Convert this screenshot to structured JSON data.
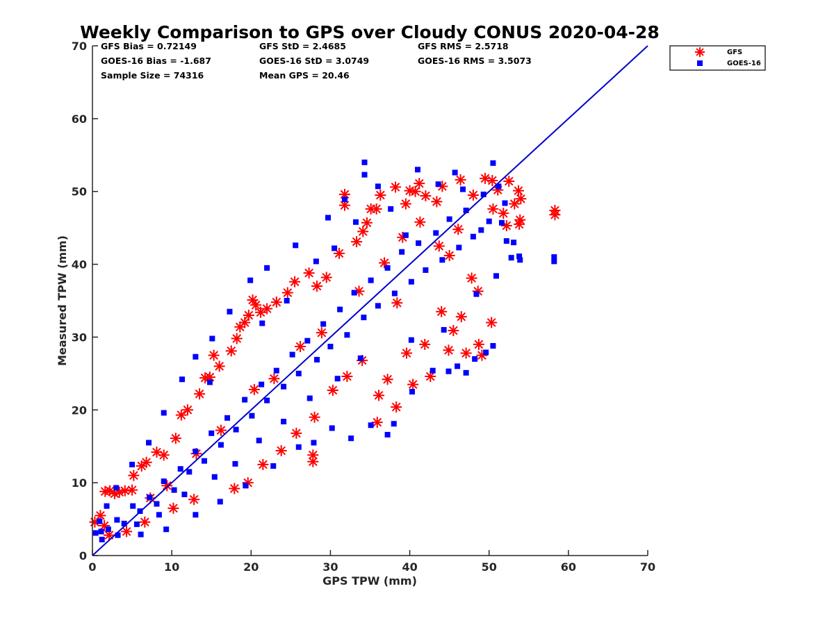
{
  "chart_data": {
    "type": "scatter",
    "title": "Weekly Comparison to GPS over Cloudy CONUS 2020-04-28",
    "xlabel": "GPS TPW (mm)",
    "ylabel": "Measured TPW (mm)",
    "xlim": [
      0,
      70
    ],
    "ylim": [
      0,
      70
    ],
    "xticks": [
      "0",
      "10",
      "20",
      "30",
      "40",
      "50",
      "60",
      "70"
    ],
    "yticks": [
      "0",
      "10",
      "20",
      "30",
      "40",
      "50",
      "60",
      "70"
    ],
    "grid": false,
    "legend_position": "outside-top-right",
    "reference_line": {
      "from": [
        0,
        0
      ],
      "to": [
        70,
        70
      ],
      "color": "#0000cc"
    },
    "stats": [
      [
        "GFS Bias = 0.72149",
        "GFS StD = 2.4685",
        "GFS RMS = 2.5718"
      ],
      [
        "GOES-16 Bias = -1.687",
        "GOES-16 StD = 3.0749",
        "GOES-16 RMS = 3.5073"
      ],
      [
        "Sample Size = 74316",
        "Mean GPS = 20.46",
        ""
      ]
    ],
    "series": [
      {
        "name": "GFS",
        "marker": "asterisk",
        "color": "#ff0000",
        "points": [
          [
            0.3,
            4.6
          ],
          [
            1.0,
            5.5
          ],
          [
            1.6,
            8.8
          ],
          [
            2.2,
            8.9
          ],
          [
            2.8,
            8.5
          ],
          [
            3.4,
            8.7
          ],
          [
            4.1,
            8.9
          ],
          [
            5.0,
            9.0
          ],
          [
            5.2,
            11.0
          ],
          [
            6.2,
            12.3
          ],
          [
            6.8,
            12.8
          ],
          [
            8.1,
            14.2
          ],
          [
            9.0,
            13.8
          ],
          [
            10.5,
            16.1
          ],
          [
            11.2,
            19.3
          ],
          [
            12.0,
            20.0
          ],
          [
            13.5,
            22.2
          ],
          [
            14.2,
            24.4
          ],
          [
            14.8,
            24.5
          ],
          [
            15.3,
            27.5
          ],
          [
            16.0,
            26.0
          ],
          [
            17.5,
            28.1
          ],
          [
            18.2,
            29.8
          ],
          [
            18.6,
            31.4
          ],
          [
            19.2,
            32.0
          ],
          [
            19.7,
            33.0
          ],
          [
            20.2,
            35.1
          ],
          [
            20.6,
            34.4
          ],
          [
            21.2,
            33.4
          ],
          [
            22.0,
            33.9
          ],
          [
            23.2,
            34.8
          ],
          [
            24.6,
            36.1
          ],
          [
            25.5,
            37.6
          ],
          [
            27.3,
            38.8
          ],
          [
            28.3,
            37.0
          ],
          [
            29.5,
            38.2
          ],
          [
            31.1,
            41.5
          ],
          [
            31.8,
            49.6
          ],
          [
            31.8,
            48.1
          ],
          [
            33.3,
            43.1
          ],
          [
            34.1,
            44.5
          ],
          [
            34.6,
            45.7
          ],
          [
            35.1,
            47.6
          ],
          [
            35.8,
            47.6
          ],
          [
            36.3,
            49.5
          ],
          [
            38.2,
            50.6
          ],
          [
            39.5,
            48.3
          ],
          [
            40.0,
            50.1
          ],
          [
            40.7,
            50.0
          ],
          [
            41.2,
            51.1
          ],
          [
            42.0,
            49.4
          ],
          [
            43.4,
            48.6
          ],
          [
            44.1,
            50.7
          ],
          [
            46.4,
            51.6
          ],
          [
            48.0,
            49.5
          ],
          [
            49.5,
            51.8
          ],
          [
            50.4,
            51.5
          ],
          [
            51.1,
            50.2
          ],
          [
            51.8,
            47.0
          ],
          [
            52.5,
            51.4
          ],
          [
            53.2,
            48.3
          ],
          [
            53.7,
            50.1
          ],
          [
            54.0,
            49.0
          ],
          [
            53.9,
            46.1
          ],
          [
            53.8,
            45.5
          ],
          [
            52.2,
            45.3
          ],
          [
            50.5,
            47.6
          ],
          [
            58.3,
            47.4
          ],
          [
            58.3,
            46.8
          ],
          [
            27.8,
            13.8
          ],
          [
            27.8,
            12.9
          ],
          [
            17.9,
            9.2
          ],
          [
            35.9,
            18.3
          ],
          [
            38.3,
            20.4
          ],
          [
            40.4,
            23.5
          ],
          [
            42.6,
            24.6
          ],
          [
            44.9,
            28.2
          ],
          [
            46.5,
            32.8
          ],
          [
            47.1,
            27.8
          ],
          [
            48.7,
            29.0
          ],
          [
            49.1,
            27.5
          ],
          [
            50.3,
            32.0
          ],
          [
            44.0,
            33.5
          ],
          [
            45.5,
            30.9
          ],
          [
            41.9,
            29.0
          ],
          [
            39.6,
            27.8
          ],
          [
            37.2,
            24.2
          ],
          [
            36.1,
            22.0
          ],
          [
            34.0,
            26.8
          ],
          [
            32.1,
            24.6
          ],
          [
            30.3,
            22.7
          ],
          [
            28.0,
            19.0
          ],
          [
            25.7,
            16.8
          ],
          [
            23.8,
            14.4
          ],
          [
            21.5,
            12.5
          ],
          [
            19.6,
            10.0
          ],
          [
            12.8,
            7.7
          ],
          [
            10.2,
            6.5
          ],
          [
            6.6,
            4.6
          ],
          [
            4.3,
            3.3
          ],
          [
            2.1,
            2.8
          ],
          [
            1.5,
            4.1
          ],
          [
            7.3,
            7.9
          ],
          [
            9.4,
            9.6
          ],
          [
            13.1,
            14.0
          ],
          [
            16.2,
            17.2
          ],
          [
            20.4,
            22.8
          ],
          [
            22.9,
            24.3
          ],
          [
            26.2,
            28.7
          ],
          [
            28.9,
            30.6
          ],
          [
            33.6,
            36.3
          ],
          [
            36.8,
            40.2
          ],
          [
            39.1,
            43.7
          ],
          [
            41.3,
            45.8
          ],
          [
            43.7,
            42.5
          ],
          [
            46.1,
            44.8
          ],
          [
            47.8,
            38.1
          ],
          [
            48.6,
            36.3
          ],
          [
            45.0,
            41.2
          ],
          [
            38.4,
            34.7
          ]
        ]
      },
      {
        "name": "GOES-16",
        "marker": "square",
        "color": "#0000ff",
        "points": [
          [
            0.4,
            3.1
          ],
          [
            1.2,
            2.2
          ],
          [
            2.0,
            3.6
          ],
          [
            3.1,
            4.9
          ],
          [
            4.0,
            4.4
          ],
          [
            5.1,
            6.8
          ],
          [
            6.0,
            6.1
          ],
          [
            7.2,
            8.0
          ],
          [
            8.1,
            7.1
          ],
          [
            9.0,
            10.2
          ],
          [
            10.3,
            9.0
          ],
          [
            11.1,
            11.9
          ],
          [
            12.2,
            11.5
          ],
          [
            13.0,
            14.3
          ],
          [
            14.1,
            13.0
          ],
          [
            15.0,
            16.8
          ],
          [
            16.2,
            15.2
          ],
          [
            17.0,
            18.9
          ],
          [
            18.1,
            17.3
          ],
          [
            19.2,
            21.4
          ],
          [
            20.1,
            19.2
          ],
          [
            21.3,
            23.5
          ],
          [
            22.0,
            21.3
          ],
          [
            23.2,
            25.4
          ],
          [
            24.1,
            23.2
          ],
          [
            25.2,
            27.6
          ],
          [
            26.0,
            25.0
          ],
          [
            27.1,
            29.5
          ],
          [
            28.3,
            26.9
          ],
          [
            29.1,
            31.8
          ],
          [
            30.0,
            28.7
          ],
          [
            31.2,
            33.8
          ],
          [
            32.1,
            30.3
          ],
          [
            33.0,
            36.1
          ],
          [
            34.2,
            32.7
          ],
          [
            35.1,
            37.8
          ],
          [
            36.0,
            34.3
          ],
          [
            37.2,
            39.5
          ],
          [
            38.1,
            36.0
          ],
          [
            39.0,
            41.7
          ],
          [
            40.2,
            37.6
          ],
          [
            41.1,
            42.9
          ],
          [
            42.0,
            39.2
          ],
          [
            43.3,
            44.3
          ],
          [
            44.1,
            40.6
          ],
          [
            45.0,
            46.2
          ],
          [
            46.2,
            42.3
          ],
          [
            47.1,
            47.4
          ],
          [
            48.0,
            43.8
          ],
          [
            49.3,
            49.6
          ],
          [
            50.0,
            45.9
          ],
          [
            51.2,
            50.7
          ],
          [
            52.0,
            48.4
          ],
          [
            53.1,
            43.0
          ],
          [
            53.8,
            41.1
          ],
          [
            53.9,
            40.6
          ],
          [
            58.2,
            41.0
          ],
          [
            58.2,
            40.4
          ],
          [
            50.5,
            53.9
          ],
          [
            45.7,
            52.6
          ],
          [
            41.0,
            53.0
          ],
          [
            34.3,
            54.0
          ],
          [
            34.3,
            52.3
          ],
          [
            36.0,
            50.7
          ],
          [
            31.8,
            48.9
          ],
          [
            29.7,
            46.4
          ],
          [
            25.6,
            42.6
          ],
          [
            22.0,
            39.5
          ],
          [
            19.9,
            37.8
          ],
          [
            17.3,
            33.5
          ],
          [
            15.1,
            29.8
          ],
          [
            13.0,
            27.3
          ],
          [
            11.3,
            24.2
          ],
          [
            9.0,
            19.6
          ],
          [
            7.1,
            15.5
          ],
          [
            5.0,
            12.5
          ],
          [
            3.0,
            9.3
          ],
          [
            1.8,
            6.8
          ],
          [
            0.9,
            4.7
          ],
          [
            1.1,
            3.3
          ],
          [
            3.2,
            2.8
          ],
          [
            6.1,
            2.9
          ],
          [
            9.3,
            3.6
          ],
          [
            13.0,
            5.6
          ],
          [
            16.1,
            7.4
          ],
          [
            19.3,
            9.6
          ],
          [
            22.8,
            12.3
          ],
          [
            26.0,
            14.9
          ],
          [
            27.9,
            15.5
          ],
          [
            30.2,
            17.5
          ],
          [
            32.6,
            16.1
          ],
          [
            35.1,
            17.9
          ],
          [
            37.2,
            16.6
          ],
          [
            38.0,
            18.1
          ],
          [
            40.3,
            22.5
          ],
          [
            42.9,
            25.4
          ],
          [
            44.9,
            25.3
          ],
          [
            46.0,
            26.0
          ],
          [
            47.1,
            25.1
          ],
          [
            48.2,
            27.0
          ],
          [
            49.6,
            27.9
          ],
          [
            50.5,
            28.8
          ],
          [
            48.4,
            35.9
          ],
          [
            50.9,
            38.4
          ],
          [
            52.8,
            40.9
          ],
          [
            52.2,
            43.2
          ],
          [
            51.6,
            45.7
          ],
          [
            49.0,
            44.7
          ],
          [
            40.2,
            29.6
          ],
          [
            44.3,
            31.0
          ],
          [
            33.8,
            27.1
          ],
          [
            30.9,
            24.3
          ],
          [
            27.4,
            21.6
          ],
          [
            24.1,
            18.4
          ],
          [
            21.0,
            15.8
          ],
          [
            18.0,
            12.6
          ],
          [
            15.4,
            10.8
          ],
          [
            11.6,
            8.4
          ],
          [
            8.4,
            5.6
          ],
          [
            5.6,
            4.3
          ],
          [
            14.8,
            23.8
          ],
          [
            21.4,
            31.9
          ],
          [
            24.5,
            35.0
          ],
          [
            28.2,
            40.4
          ],
          [
            30.5,
            42.2
          ],
          [
            33.2,
            45.8
          ],
          [
            37.6,
            47.6
          ],
          [
            43.6,
            51.0
          ],
          [
            46.7,
            50.3
          ],
          [
            39.5,
            44.0
          ]
        ]
      }
    ]
  }
}
